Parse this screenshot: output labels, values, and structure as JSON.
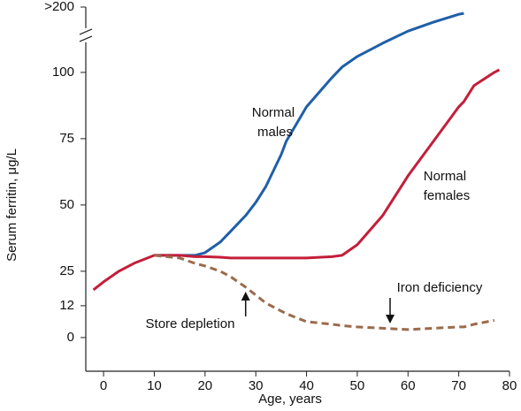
{
  "chart_data": {
    "type": "line",
    "xlabel": "Age, years",
    "ylabel": "Serum ferritin, μg/L",
    "x": [
      -2,
      0,
      3,
      6,
      10,
      15,
      18,
      20,
      23,
      25,
      28,
      30,
      32,
      35,
      36,
      40,
      45,
      47,
      50,
      55,
      60,
      65,
      70,
      71,
      73,
      77,
      78
    ],
    "series": [
      {
        "name": "Normal males",
        "color": "#1f5fa8",
        "dashed": false,
        "values": [
          null,
          null,
          null,
          null,
          31,
          31,
          31,
          32,
          36,
          40,
          46,
          51,
          57,
          69,
          74,
          87,
          98,
          102,
          106,
          111,
          127,
          154,
          178,
          181,
          null,
          null,
          null
        ]
      },
      {
        "name": "Normal females",
        "color": "#c41e3a",
        "dashed": false,
        "values": [
          18,
          21,
          25,
          28,
          31,
          31,
          30.5,
          30.5,
          30.3,
          30,
          30,
          30,
          30,
          30,
          30,
          30,
          30.5,
          31,
          35,
          46,
          61,
          74,
          87,
          89,
          95,
          100,
          101
        ]
      },
      {
        "name": "Iron deficiency",
        "color": "#9b6a4a",
        "dashed": true,
        "values": [
          null,
          null,
          null,
          null,
          31,
          30,
          28,
          27,
          25,
          23,
          19,
          16,
          13,
          10,
          9,
          6,
          5,
          4.5,
          4,
          3.5,
          3,
          3.5,
          4,
          4,
          5,
          6.5,
          null
        ]
      }
    ],
    "annotations": [
      {
        "text": "Store depletion",
        "x": 28
      }
    ],
    "xlim": [
      -3.5,
      80
    ],
    "xticks": [
      0,
      10,
      20,
      30,
      40,
      50,
      60,
      70,
      80
    ],
    "ylim": [
      -12.7,
      200
    ],
    "y_break": 114,
    "yticks": [
      0,
      12,
      25,
      50,
      75,
      100,
      {
        "value": 200,
        "label": ">200"
      }
    ]
  }
}
